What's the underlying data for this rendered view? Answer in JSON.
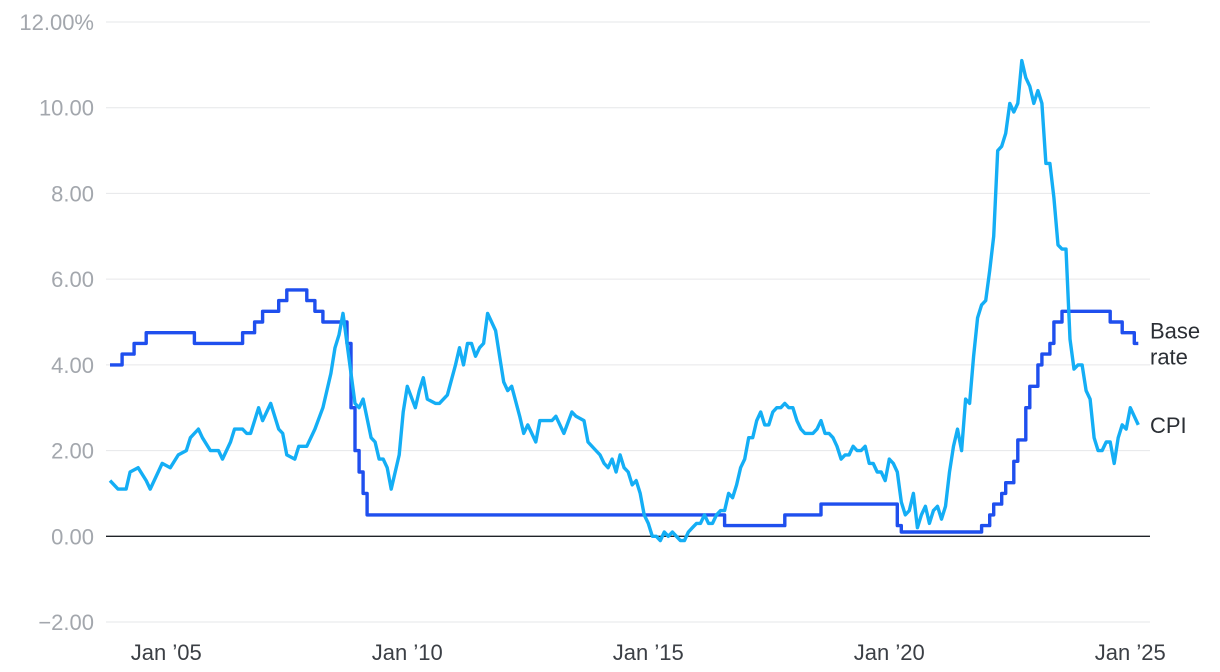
{
  "chart_data": {
    "type": "line",
    "title": "",
    "xlabel": "",
    "ylabel": "",
    "ylim": [
      -2,
      12
    ],
    "xlim": [
      "2003-10",
      "2025-03"
    ],
    "grid": "horizontal",
    "y_ticks": [
      {
        "value": 12,
        "label": "12.00%"
      },
      {
        "value": 10,
        "label": "10.00"
      },
      {
        "value": 8,
        "label": "8.00"
      },
      {
        "value": 6,
        "label": "6.00"
      },
      {
        "value": 4,
        "label": "4.00"
      },
      {
        "value": 2,
        "label": "2.00"
      },
      {
        "value": 0,
        "label": "0.00"
      },
      {
        "value": -2,
        "label": "−2.00"
      }
    ],
    "x_ticks": [
      {
        "value": "2005-01",
        "label": "Jan ’05"
      },
      {
        "value": "2010-01",
        "label": "Jan ’10"
      },
      {
        "value": "2015-01",
        "label": "Jan ’15"
      },
      {
        "value": "2020-01",
        "label": "Jan ’20"
      },
      {
        "value": "2025-01",
        "label": "Jan ’25"
      }
    ],
    "series": [
      {
        "name": "Base rate",
        "legend_lines": [
          "Base",
          "rate"
        ],
        "color": "#1f4fee",
        "step": true,
        "points": [
          [
            "2003-11",
            4.0
          ],
          [
            "2004-02",
            4.25
          ],
          [
            "2004-05",
            4.5
          ],
          [
            "2004-08",
            4.75
          ],
          [
            "2005-08",
            4.5
          ],
          [
            "2006-08",
            4.75
          ],
          [
            "2006-11",
            5.0
          ],
          [
            "2007-01",
            5.25
          ],
          [
            "2007-05",
            5.5
          ],
          [
            "2007-07",
            5.75
          ],
          [
            "2007-12",
            5.5
          ],
          [
            "2008-02",
            5.25
          ],
          [
            "2008-04",
            5.0
          ],
          [
            "2008-10",
            4.5
          ],
          [
            "2008-11",
            3.0
          ],
          [
            "2008-12",
            2.0
          ],
          [
            "2009-01",
            1.5
          ],
          [
            "2009-02",
            1.0
          ],
          [
            "2009-03",
            0.5
          ],
          [
            "2016-08",
            0.25
          ],
          [
            "2017-11",
            0.5
          ],
          [
            "2018-08",
            0.75
          ],
          [
            "2020-03",
            0.25
          ],
          [
            "2020-04",
            0.1
          ],
          [
            "2021-12",
            0.25
          ],
          [
            "2022-02",
            0.5
          ],
          [
            "2022-03",
            0.75
          ],
          [
            "2022-05",
            1.0
          ],
          [
            "2022-06",
            1.25
          ],
          [
            "2022-08",
            1.75
          ],
          [
            "2022-09",
            2.25
          ],
          [
            "2022-11",
            3.0
          ],
          [
            "2022-12",
            3.5
          ],
          [
            "2023-02",
            4.0
          ],
          [
            "2023-03",
            4.25
          ],
          [
            "2023-05",
            4.5
          ],
          [
            "2023-06",
            5.0
          ],
          [
            "2023-08",
            5.25
          ],
          [
            "2024-08",
            5.0
          ],
          [
            "2024-11",
            4.75
          ],
          [
            "2025-02",
            4.5
          ],
          [
            "2025-03",
            4.5
          ]
        ]
      },
      {
        "name": "CPI",
        "legend_lines": [
          "CPI"
        ],
        "color": "#14aef5",
        "step": false,
        "points": [
          [
            "2003-11",
            1.3
          ],
          [
            "2004-01",
            1.1
          ],
          [
            "2004-03",
            1.1
          ],
          [
            "2004-04",
            1.5
          ],
          [
            "2004-06",
            1.6
          ],
          [
            "2004-08",
            1.3
          ],
          [
            "2004-09",
            1.1
          ],
          [
            "2004-11",
            1.5
          ],
          [
            "2004-12",
            1.7
          ],
          [
            "2005-02",
            1.6
          ],
          [
            "2005-04",
            1.9
          ],
          [
            "2005-06",
            2.0
          ],
          [
            "2005-07",
            2.3
          ],
          [
            "2005-08",
            2.4
          ],
          [
            "2005-09",
            2.5
          ],
          [
            "2005-10",
            2.3
          ],
          [
            "2005-12",
            2.0
          ],
          [
            "2006-02",
            2.0
          ],
          [
            "2006-03",
            1.8
          ],
          [
            "2006-05",
            2.2
          ],
          [
            "2006-06",
            2.5
          ],
          [
            "2006-08",
            2.5
          ],
          [
            "2006-09",
            2.4
          ],
          [
            "2006-10",
            2.4
          ],
          [
            "2006-11",
            2.7
          ],
          [
            "2006-12",
            3.0
          ],
          [
            "2007-01",
            2.7
          ],
          [
            "2007-03",
            3.1
          ],
          [
            "2007-05",
            2.5
          ],
          [
            "2007-06",
            2.4
          ],
          [
            "2007-07",
            1.9
          ],
          [
            "2007-09",
            1.8
          ],
          [
            "2007-10",
            2.1
          ],
          [
            "2007-12",
            2.1
          ],
          [
            "2008-02",
            2.5
          ],
          [
            "2008-04",
            3.0
          ],
          [
            "2008-06",
            3.8
          ],
          [
            "2008-07",
            4.4
          ],
          [
            "2008-08",
            4.7
          ],
          [
            "2008-09",
            5.2
          ],
          [
            "2008-10",
            4.5
          ],
          [
            "2008-12",
            3.1
          ],
          [
            "2009-01",
            3.0
          ],
          [
            "2009-02",
            3.2
          ],
          [
            "2009-04",
            2.3
          ],
          [
            "2009-05",
            2.2
          ],
          [
            "2009-06",
            1.8
          ],
          [
            "2009-07",
            1.8
          ],
          [
            "2009-08",
            1.6
          ],
          [
            "2009-09",
            1.1
          ],
          [
            "2009-10",
            1.5
          ],
          [
            "2009-11",
            1.9
          ],
          [
            "2009-12",
            2.9
          ],
          [
            "2010-01",
            3.5
          ],
          [
            "2010-03",
            3.0
          ],
          [
            "2010-04",
            3.4
          ],
          [
            "2010-05",
            3.7
          ],
          [
            "2010-06",
            3.2
          ],
          [
            "2010-08",
            3.1
          ],
          [
            "2010-09",
            3.1
          ],
          [
            "2010-11",
            3.3
          ],
          [
            "2011-01",
            4.0
          ],
          [
            "2011-02",
            4.4
          ],
          [
            "2011-03",
            4.0
          ],
          [
            "2011-04",
            4.5
          ],
          [
            "2011-05",
            4.5
          ],
          [
            "2011-06",
            4.2
          ],
          [
            "2011-07",
            4.4
          ],
          [
            "2011-08",
            4.5
          ],
          [
            "2011-09",
            5.2
          ],
          [
            "2011-10",
            5.0
          ],
          [
            "2011-11",
            4.8
          ],
          [
            "2011-12",
            4.2
          ],
          [
            "2012-01",
            3.6
          ],
          [
            "2012-02",
            3.4
          ],
          [
            "2012-03",
            3.5
          ],
          [
            "2012-05",
            2.8
          ],
          [
            "2012-06",
            2.4
          ],
          [
            "2012-07",
            2.6
          ],
          [
            "2012-09",
            2.2
          ],
          [
            "2012-10",
            2.7
          ],
          [
            "2012-11",
            2.7
          ],
          [
            "2013-01",
            2.7
          ],
          [
            "2013-02",
            2.8
          ],
          [
            "2013-04",
            2.4
          ],
          [
            "2013-06",
            2.9
          ],
          [
            "2013-07",
            2.8
          ],
          [
            "2013-09",
            2.7
          ],
          [
            "2013-10",
            2.2
          ],
          [
            "2013-12",
            2.0
          ],
          [
            "2014-01",
            1.9
          ],
          [
            "2014-02",
            1.7
          ],
          [
            "2014-03",
            1.6
          ],
          [
            "2014-04",
            1.8
          ],
          [
            "2014-05",
            1.5
          ],
          [
            "2014-06",
            1.9
          ],
          [
            "2014-07",
            1.6
          ],
          [
            "2014-08",
            1.5
          ],
          [
            "2014-09",
            1.2
          ],
          [
            "2014-10",
            1.3
          ],
          [
            "2014-11",
            1.0
          ],
          [
            "2014-12",
            0.5
          ],
          [
            "2015-01",
            0.3
          ],
          [
            "2015-02",
            0.0
          ],
          [
            "2015-03",
            0.0
          ],
          [
            "2015-04",
            -0.1
          ],
          [
            "2015-05",
            0.1
          ],
          [
            "2015-06",
            0.0
          ],
          [
            "2015-07",
            0.1
          ],
          [
            "2015-08",
            0.0
          ],
          [
            "2015-09",
            -0.1
          ],
          [
            "2015-10",
            -0.1
          ],
          [
            "2015-11",
            0.1
          ],
          [
            "2015-12",
            0.2
          ],
          [
            "2016-01",
            0.3
          ],
          [
            "2016-02",
            0.3
          ],
          [
            "2016-03",
            0.5
          ],
          [
            "2016-04",
            0.3
          ],
          [
            "2016-05",
            0.3
          ],
          [
            "2016-06",
            0.5
          ],
          [
            "2016-07",
            0.6
          ],
          [
            "2016-08",
            0.6
          ],
          [
            "2016-09",
            1.0
          ],
          [
            "2016-10",
            0.9
          ],
          [
            "2016-11",
            1.2
          ],
          [
            "2016-12",
            1.6
          ],
          [
            "2017-01",
            1.8
          ],
          [
            "2017-02",
            2.3
          ],
          [
            "2017-03",
            2.3
          ],
          [
            "2017-04",
            2.7
          ],
          [
            "2017-05",
            2.9
          ],
          [
            "2017-06",
            2.6
          ],
          [
            "2017-07",
            2.6
          ],
          [
            "2017-08",
            2.9
          ],
          [
            "2017-09",
            3.0
          ],
          [
            "2017-10",
            3.0
          ],
          [
            "2017-11",
            3.1
          ],
          [
            "2017-12",
            3.0
          ],
          [
            "2018-01",
            3.0
          ],
          [
            "2018-02",
            2.7
          ],
          [
            "2018-03",
            2.5
          ],
          [
            "2018-04",
            2.4
          ],
          [
            "2018-05",
            2.4
          ],
          [
            "2018-06",
            2.4
          ],
          [
            "2018-07",
            2.5
          ],
          [
            "2018-08",
            2.7
          ],
          [
            "2018-09",
            2.4
          ],
          [
            "2018-10",
            2.4
          ],
          [
            "2018-11",
            2.3
          ],
          [
            "2018-12",
            2.1
          ],
          [
            "2019-01",
            1.8
          ],
          [
            "2019-02",
            1.9
          ],
          [
            "2019-03",
            1.9
          ],
          [
            "2019-04",
            2.1
          ],
          [
            "2019-05",
            2.0
          ],
          [
            "2019-06",
            2.0
          ],
          [
            "2019-07",
            2.1
          ],
          [
            "2019-08",
            1.7
          ],
          [
            "2019-09",
            1.7
          ],
          [
            "2019-10",
            1.5
          ],
          [
            "2019-11",
            1.5
          ],
          [
            "2019-12",
            1.3
          ],
          [
            "2020-01",
            1.8
          ],
          [
            "2020-02",
            1.7
          ],
          [
            "2020-03",
            1.5
          ],
          [
            "2020-04",
            0.8
          ],
          [
            "2020-05",
            0.5
          ],
          [
            "2020-06",
            0.6
          ],
          [
            "2020-07",
            1.0
          ],
          [
            "2020-08",
            0.2
          ],
          [
            "2020-09",
            0.5
          ],
          [
            "2020-10",
            0.7
          ],
          [
            "2020-11",
            0.3
          ],
          [
            "2020-12",
            0.6
          ],
          [
            "2021-01",
            0.7
          ],
          [
            "2021-02",
            0.4
          ],
          [
            "2021-03",
            0.7
          ],
          [
            "2021-04",
            1.5
          ],
          [
            "2021-05",
            2.1
          ],
          [
            "2021-06",
            2.5
          ],
          [
            "2021-07",
            2.0
          ],
          [
            "2021-08",
            3.2
          ],
          [
            "2021-09",
            3.1
          ],
          [
            "2021-10",
            4.2
          ],
          [
            "2021-11",
            5.1
          ],
          [
            "2021-12",
            5.4
          ],
          [
            "2022-01",
            5.5
          ],
          [
            "2022-02",
            6.2
          ],
          [
            "2022-03",
            7.0
          ],
          [
            "2022-04",
            9.0
          ],
          [
            "2022-05",
            9.1
          ],
          [
            "2022-06",
            9.4
          ],
          [
            "2022-07",
            10.1
          ],
          [
            "2022-08",
            9.9
          ],
          [
            "2022-09",
            10.1
          ],
          [
            "2022-10",
            11.1
          ],
          [
            "2022-11",
            10.7
          ],
          [
            "2022-12",
            10.5
          ],
          [
            "2023-01",
            10.1
          ],
          [
            "2023-02",
            10.4
          ],
          [
            "2023-03",
            10.1
          ],
          [
            "2023-04",
            8.7
          ],
          [
            "2023-05",
            8.7
          ],
          [
            "2023-06",
            7.9
          ],
          [
            "2023-07",
            6.8
          ],
          [
            "2023-08",
            6.7
          ],
          [
            "2023-09",
            6.7
          ],
          [
            "2023-10",
            4.6
          ],
          [
            "2023-11",
            3.9
          ],
          [
            "2023-12",
            4.0
          ],
          [
            "2024-01",
            4.0
          ],
          [
            "2024-02",
            3.4
          ],
          [
            "2024-03",
            3.2
          ],
          [
            "2024-04",
            2.3
          ],
          [
            "2024-05",
            2.0
          ],
          [
            "2024-06",
            2.0
          ],
          [
            "2024-07",
            2.2
          ],
          [
            "2024-08",
            2.2
          ],
          [
            "2024-09",
            1.7
          ],
          [
            "2024-10",
            2.3
          ],
          [
            "2024-11",
            2.6
          ],
          [
            "2024-12",
            2.5
          ],
          [
            "2025-01",
            3.0
          ],
          [
            "2025-02",
            2.8
          ],
          [
            "2025-03",
            2.6
          ]
        ]
      }
    ]
  }
}
